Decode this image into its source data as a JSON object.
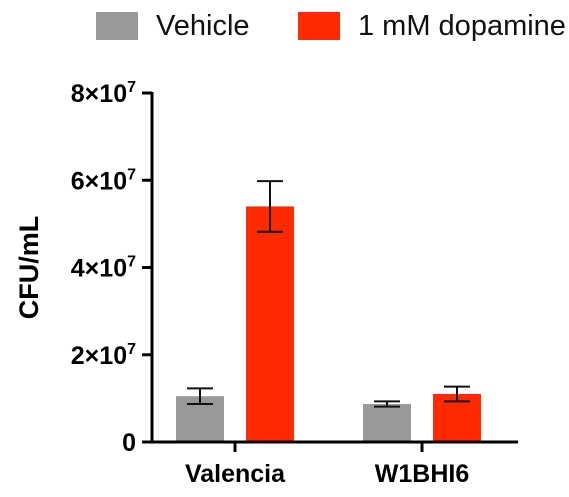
{
  "chart_data": {
    "type": "bar",
    "title": "",
    "xlabel": "",
    "ylabel": "CFU/mL",
    "categories": [
      "Valencia",
      "W1BHI6"
    ],
    "series": [
      {
        "name": "Vehicle",
        "color": "#999999",
        "values": [
          10500000,
          8700000
        ],
        "error": [
          1800000,
          600000
        ]
      },
      {
        "name": "1 mM dopamine",
        "color": "#ff2a00",
        "values": [
          54000000,
          11000000
        ],
        "error": [
          5800000,
          1700000
        ]
      }
    ],
    "ylim": [
      0,
      80000000
    ],
    "yticks": [
      {
        "value": 0,
        "base": "0",
        "exp": ""
      },
      {
        "value": 20000000,
        "base": "2×10",
        "exp": "7"
      },
      {
        "value": 40000000,
        "base": "4×10",
        "exp": "7"
      },
      {
        "value": 60000000,
        "base": "6×10",
        "exp": "7"
      },
      {
        "value": 80000000,
        "base": "8×10",
        "exp": "7"
      }
    ],
    "legend_position": "top",
    "grid": false
  }
}
